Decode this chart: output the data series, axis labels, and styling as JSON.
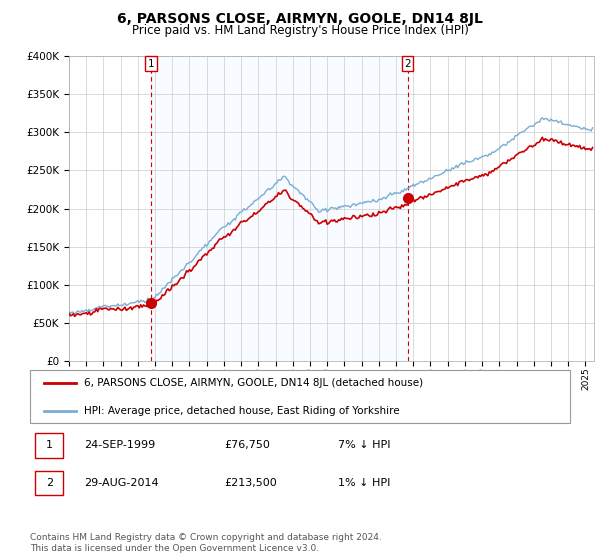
{
  "title": "6, PARSONS CLOSE, AIRMYN, GOOLE, DN14 8JL",
  "subtitle": "Price paid vs. HM Land Registry's House Price Index (HPI)",
  "ylim": [
    0,
    400000
  ],
  "xlim_start": 1995.0,
  "xlim_end": 2025.5,
  "sale1": {
    "date_num": 1999.75,
    "price": 76750,
    "label": "1"
  },
  "sale2": {
    "date_num": 2014.67,
    "price": 213500,
    "label": "2"
  },
  "legend_red": "6, PARSONS CLOSE, AIRMYN, GOOLE, DN14 8JL (detached house)",
  "legend_blue": "HPI: Average price, detached house, East Riding of Yorkshire",
  "table_rows": [
    [
      "1",
      "24-SEP-1999",
      "£76,750",
      "7% ↓ HPI"
    ],
    [
      "2",
      "29-AUG-2014",
      "£213,500",
      "1% ↓ HPI"
    ]
  ],
  "footer": "Contains HM Land Registry data © Crown copyright and database right 2024.\nThis data is licensed under the Open Government Licence v3.0.",
  "red_color": "#cc0000",
  "blue_color": "#7aadd4",
  "shade_color": "#ddeeff",
  "grid_color": "#cccccc",
  "background_color": "#ffffff"
}
